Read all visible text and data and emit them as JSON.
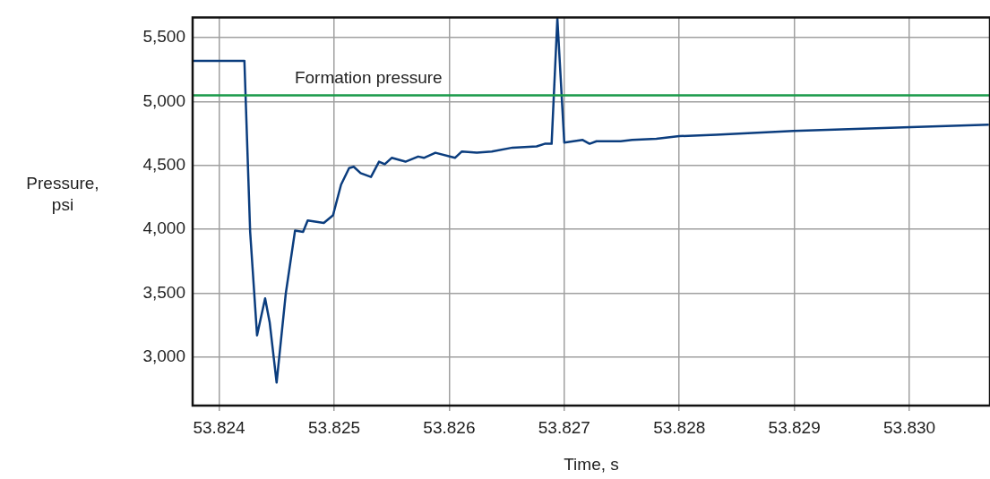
{
  "chart_data": {
    "type": "line",
    "xlabel": "Time, s",
    "ylabel": "Pressure, psi",
    "xlim": [
      53.82377,
      53.8307
    ],
    "ylim": [
      2620,
      5660
    ],
    "xticks": [
      {
        "value": 53.824,
        "label": "53.824"
      },
      {
        "value": 53.825,
        "label": "53.825"
      },
      {
        "value": 53.826,
        "label": "53.826"
      },
      {
        "value": 53.827,
        "label": "53.827"
      },
      {
        "value": 53.828,
        "label": "53.828"
      },
      {
        "value": 53.829,
        "label": "53.829"
      },
      {
        "value": 53.83,
        "label": "53.830"
      }
    ],
    "yticks": [
      {
        "value": 3000,
        "label": "3,000"
      },
      {
        "value": 3500,
        "label": "3,500"
      },
      {
        "value": 4000,
        "label": "4,000"
      },
      {
        "value": 4500,
        "label": "4,500"
      },
      {
        "value": 5000,
        "label": "5,000"
      },
      {
        "value": 5500,
        "label": "5,500"
      }
    ],
    "grid": true,
    "legend": false,
    "marker": "none",
    "line_style": "solid",
    "ref_lines": [
      {
        "axis": "y",
        "value": 5050,
        "label": "Formation pressure",
        "color": "#1a9a4a"
      }
    ],
    "series": [
      {
        "color": "#0b3d7e",
        "x": [
          53.82377,
          53.82422,
          53.82427,
          53.82433,
          53.8244,
          53.82444,
          53.8245,
          53.82458,
          53.82466,
          53.82473,
          53.82477,
          53.82491,
          53.82499,
          53.82506,
          53.82513,
          53.82517,
          53.82523,
          53.82532,
          53.82539,
          53.82544,
          53.8255,
          53.82562,
          53.82573,
          53.82578,
          53.82588,
          53.82605,
          53.82611,
          53.82624,
          53.82637,
          53.82655,
          53.82676,
          53.82683,
          53.82689,
          53.82694,
          53.827,
          53.82716,
          53.82722,
          53.82728,
          53.82749,
          53.82759,
          53.8278,
          53.828,
          53.82832,
          53.82899,
          53.83001,
          53.83069
        ],
        "values": [
          5320,
          5320,
          3980,
          3170,
          3460,
          3270,
          2800,
          3500,
          3990,
          3980,
          4070,
          4050,
          4110,
          4350,
          4480,
          4490,
          4440,
          4410,
          4530,
          4510,
          4560,
          4530,
          4570,
          4560,
          4600,
          4560,
          4610,
          4600,
          4610,
          4640,
          4650,
          4670,
          4670,
          5650,
          4680,
          4700,
          4670,
          4690,
          4690,
          4700,
          4710,
          4730,
          4740,
          4770,
          4800,
          4820
        ]
      }
    ]
  }
}
